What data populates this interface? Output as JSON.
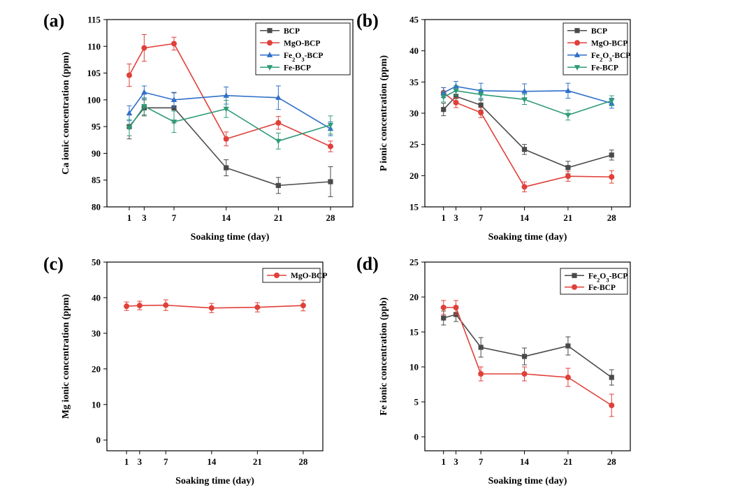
{
  "chart_data": [
    {
      "panel": "(a)",
      "type": "line",
      "xlabel": "Soaking time (day)",
      "ylabel": "Ca ionic concentration (ppm)",
      "x": [
        1,
        3,
        7,
        14,
        21,
        28
      ],
      "xticks": [
        "1",
        "3",
        "7",
        "14",
        "21",
        "28"
      ],
      "ylim": [
        80,
        115
      ],
      "yticks": [
        "80",
        "85",
        "90",
        "95",
        "100",
        "105",
        "110",
        "115"
      ],
      "legend_position": "top-right",
      "series": [
        {
          "name": "BCP",
          "marker": "square",
          "color": "#4a4a4a",
          "values": [
            95.0,
            98.5,
            98.5,
            87.3,
            84.0,
            84.7
          ],
          "errors": [
            2.3,
            1.5,
            2.8,
            1.5,
            1.5,
            2.8
          ]
        },
        {
          "name": "MgO-BCP",
          "marker": "circle",
          "color": "#e0403a",
          "values": [
            104.6,
            109.7,
            110.5,
            92.7,
            95.7,
            91.3
          ],
          "errors": [
            2.1,
            2.5,
            1.2,
            1.3,
            1.2,
            1.0
          ]
        },
        {
          "name": "Fe2O3-BCP",
          "marker": "triangle-up",
          "color": "#2f6fc9",
          "values": [
            97.5,
            101.4,
            100.0,
            100.8,
            100.4,
            94.6
          ],
          "errors": [
            1.4,
            1.2,
            1.4,
            1.6,
            2.2,
            1.3
          ]
        },
        {
          "name": "Fe-BCP",
          "marker": "triangle-down",
          "color": "#2f9b78",
          "values": [
            94.8,
            98.8,
            95.9,
            98.3,
            92.3,
            95.3
          ],
          "errors": [
            1.5,
            1.6,
            2.0,
            1.6,
            1.5,
            1.7
          ]
        }
      ]
    },
    {
      "panel": "(b)",
      "type": "line",
      "xlabel": "Soaking time (day)",
      "ylabel": "P ionic concentration (ppm)",
      "x": [
        1,
        3,
        7,
        14,
        21,
        28
      ],
      "xticks": [
        "1",
        "3",
        "7",
        "14",
        "21",
        "28"
      ],
      "ylim": [
        15,
        45
      ],
      "yticks": [
        "15",
        "20",
        "25",
        "30",
        "35",
        "40",
        "45"
      ],
      "legend_position": "top-right",
      "series": [
        {
          "name": "BCP",
          "marker": "square",
          "color": "#4a4a4a",
          "values": [
            30.6,
            32.7,
            31.3,
            24.2,
            21.3,
            23.3
          ],
          "errors": [
            1.0,
            0.8,
            0.8,
            0.8,
            1.0,
            0.8
          ]
        },
        {
          "name": "MgO-BCP",
          "marker": "circle",
          "color": "#e0403a",
          "values": [
            33.3,
            31.7,
            30.1,
            18.2,
            19.9,
            19.8
          ],
          "errors": [
            0.8,
            0.8,
            0.8,
            0.8,
            0.8,
            1.0
          ]
        },
        {
          "name": "Fe2O3-BCP",
          "marker": "triangle-up",
          "color": "#2f6fc9",
          "values": [
            33.3,
            34.3,
            33.6,
            33.5,
            33.6,
            31.6
          ],
          "errors": [
            0.8,
            0.8,
            1.2,
            1.2,
            1.2,
            0.8
          ]
        },
        {
          "name": "Fe-BCP",
          "marker": "triangle-down",
          "color": "#2f9b78",
          "values": [
            32.6,
            33.6,
            33.0,
            32.2,
            29.7,
            32.0
          ],
          "errors": [
            0.8,
            0.8,
            0.8,
            0.8,
            0.8,
            0.8
          ]
        }
      ]
    },
    {
      "panel": "(c)",
      "type": "line",
      "xlabel": "Soaking time (day)",
      "ylabel": "Mg ionic concentration (ppm)",
      "x": [
        1,
        3,
        7,
        14,
        21,
        28
      ],
      "xticks": [
        "1",
        "3",
        "7",
        "14",
        "21",
        "28"
      ],
      "ylim": [
        -3,
        50
      ],
      "yticks": [
        "0",
        "10",
        "20",
        "30",
        "40",
        "50"
      ],
      "legend_position": "top-right",
      "series": [
        {
          "name": "MgO-BCP",
          "marker": "circle",
          "color": "#e0403a",
          "values": [
            37.6,
            37.8,
            37.9,
            37.1,
            37.3,
            37.8
          ],
          "errors": [
            1.2,
            1.2,
            1.5,
            1.3,
            1.3,
            1.5
          ]
        }
      ]
    },
    {
      "panel": "(d)",
      "type": "line",
      "xlabel": "Soaking time (day)",
      "ylabel": "Fe ionic concentration (ppb)",
      "x": [
        1,
        3,
        7,
        14,
        21,
        28
      ],
      "xticks": [
        "1",
        "3",
        "7",
        "14",
        "21",
        "28"
      ],
      "ylim": [
        -2,
        25
      ],
      "yticks": [
        "0",
        "5",
        "10",
        "15",
        "20",
        "25"
      ],
      "legend_position": "top-right",
      "series": [
        {
          "name": "Fe2O3-BCP",
          "marker": "square",
          "color": "#4a4a4a",
          "values": [
            17.0,
            17.5,
            12.8,
            11.5,
            13.0,
            8.5
          ],
          "errors": [
            1.0,
            1.0,
            1.4,
            1.2,
            1.3,
            1.1
          ]
        },
        {
          "name": "Fe-BCP",
          "marker": "circle",
          "color": "#e0403a",
          "values": [
            18.5,
            18.5,
            9.0,
            9.0,
            8.5,
            4.5
          ],
          "errors": [
            1.0,
            1.0,
            1.0,
            1.0,
            1.3,
            1.6
          ]
        }
      ]
    }
  ]
}
